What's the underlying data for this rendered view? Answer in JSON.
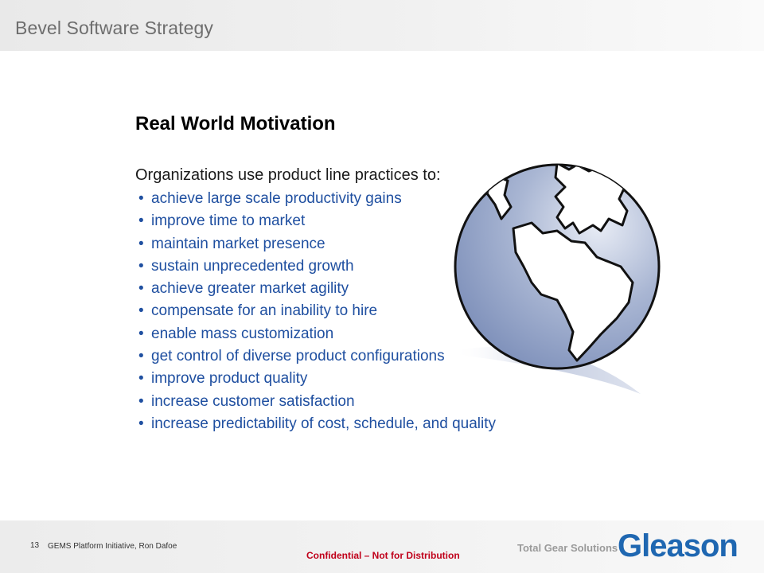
{
  "header": {
    "title": "Bevel Software Strategy"
  },
  "slide": {
    "title": "Real World Motivation",
    "intro": "Organizations use product line practices to:",
    "bullet_glyph": "•",
    "bullets": [
      "achieve large scale productivity gains",
      "improve time to market",
      "maintain market presence",
      "sustain unprecedented growth",
      "achieve greater market agility",
      "compensate for an inability to hire",
      "enable mass customization",
      "get control of diverse product configurations",
      "improve product quality",
      "increase customer satisfaction",
      "increase predictability of cost, schedule, and quality"
    ],
    "image": {
      "icon": "globe-icon"
    }
  },
  "footer": {
    "page_number": "13",
    "presentation": "GEMS Platform Initiative,  Ron Dafoe",
    "confidential": "Confidential  – Not for Distribution",
    "tagline": "Total Gear Solutions",
    "logo": "Gleason"
  },
  "colors": {
    "bullet_text": "#1f4fa0",
    "confidential": "#c0001a",
    "logo": "#1f67b1",
    "globe_ocean": "#8ea0c6",
    "globe_land": "#ffffff"
  }
}
